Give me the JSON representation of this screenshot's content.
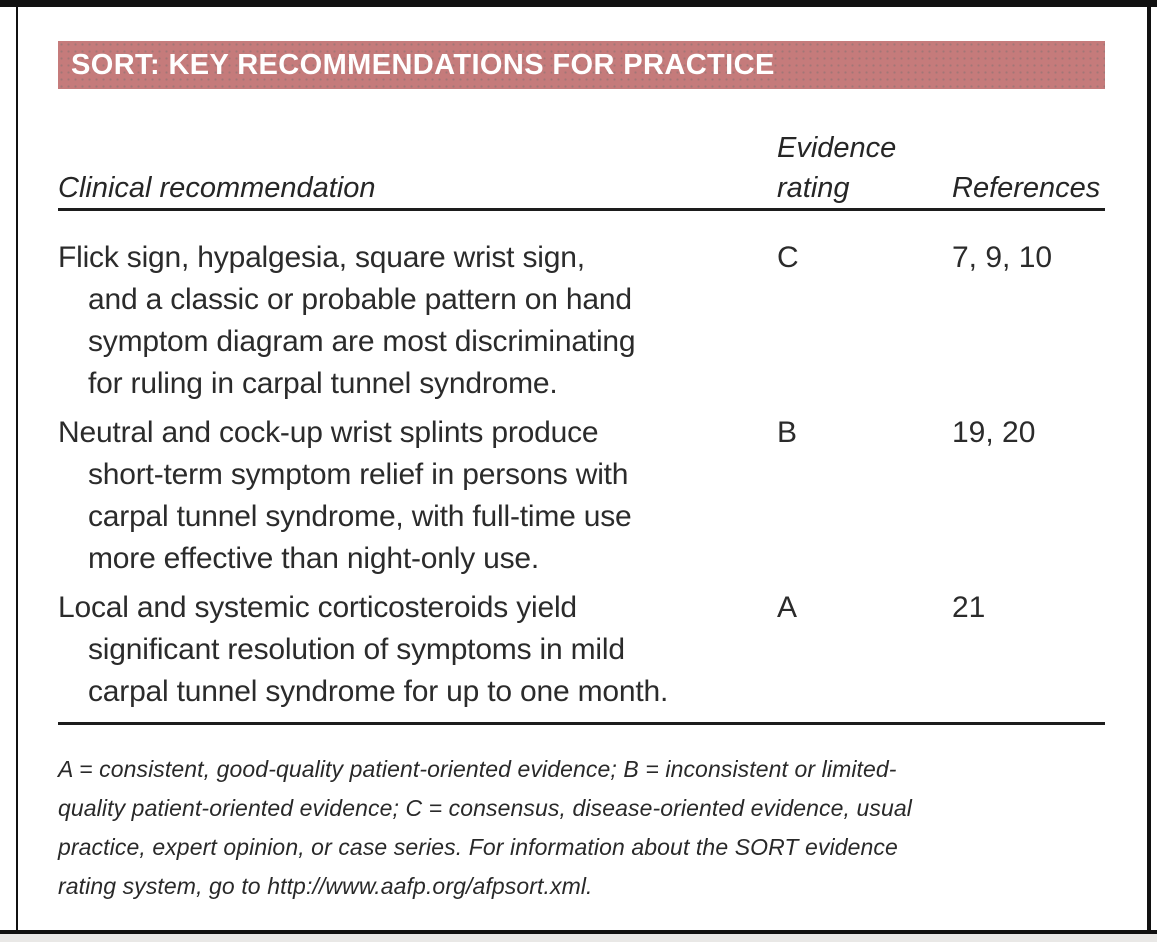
{
  "title_bar": {
    "title": "SORT: KEY RECOMMENDATIONS FOR PRACTICE"
  },
  "table": {
    "col_headers": {
      "clinical": "Clinical recommendation",
      "evidence_rating": [
        "Evidence",
        "rating"
      ],
      "references": "References"
    },
    "rows": [
      {
        "recommendation": [
          "Flick sign, hypalgesia, square wrist sign,",
          "and a classic or probable pattern on hand",
          "symptom diagram are most discriminating",
          "for ruling in carpal tunnel syndrome."
        ],
        "evidence_rating": "C",
        "references": "7, 9, 10"
      },
      {
        "recommendation": [
          "Neutral and cock-up wrist splints produce",
          "short-term symptom relief in persons with",
          "carpal tunnel syndrome, with full-time use",
          "more effective than night-only use."
        ],
        "evidence_rating": "B",
        "references": "19, 20"
      },
      {
        "recommendation": [
          "Local and systemic corticosteroids yield",
          "significant resolution of symptoms in mild",
          "carpal tunnel syndrome for up to one month."
        ],
        "evidence_rating": "A",
        "references": "21"
      }
    ]
  },
  "footnote": {
    "lines": [
      "A = consistent, good-quality patient-oriented evidence; B = inconsistent or limited-",
      "quality patient-oriented evidence; C = consensus, disease-oriented evidence, usual",
      "practice, expert opinion, or case series. For information about the SORT evidence",
      "rating system, go to http://www.aafp.org/afpsort.xml."
    ]
  },
  "colors": {
    "header_bg": "#c57b7b",
    "header_text": "#ffffff",
    "body_text": "#2b2b2b",
    "rule": "#1d1d1d",
    "frame": "#111111"
  }
}
